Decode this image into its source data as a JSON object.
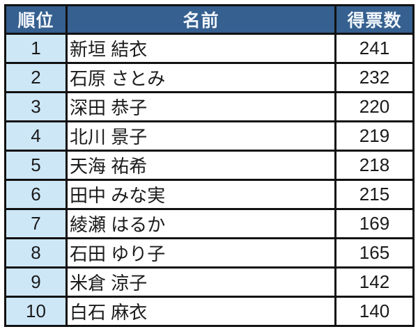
{
  "colors": {
    "header_bg": "#35608f",
    "header_text": "#f2f6fb",
    "rank_cell_bg": "#cde7f7",
    "cell_bg": "#ffffff",
    "border": "#111111",
    "cell_text": "#1a1a1a"
  },
  "table": {
    "columns": {
      "rank_label": "順位",
      "name_label": "名前",
      "votes_label": "得票数"
    },
    "rows": [
      {
        "rank": "1",
        "name": "新垣 結衣",
        "votes": "241"
      },
      {
        "rank": "2",
        "name": "石原 さとみ",
        "votes": "232"
      },
      {
        "rank": "3",
        "name": "深田 恭子",
        "votes": "220"
      },
      {
        "rank": "4",
        "name": "北川 景子",
        "votes": "219"
      },
      {
        "rank": "5",
        "name": "天海 祐希",
        "votes": "218"
      },
      {
        "rank": "6",
        "name": "田中 みな実",
        "votes": "215"
      },
      {
        "rank": "7",
        "name": "綾瀬 はるか",
        "votes": "169"
      },
      {
        "rank": "8",
        "name": "石田 ゆり子",
        "votes": "165"
      },
      {
        "rank": "9",
        "name": "米倉 涼子",
        "votes": "142"
      },
      {
        "rank": "10",
        "name": "白石 麻衣",
        "votes": "140"
      }
    ]
  }
}
